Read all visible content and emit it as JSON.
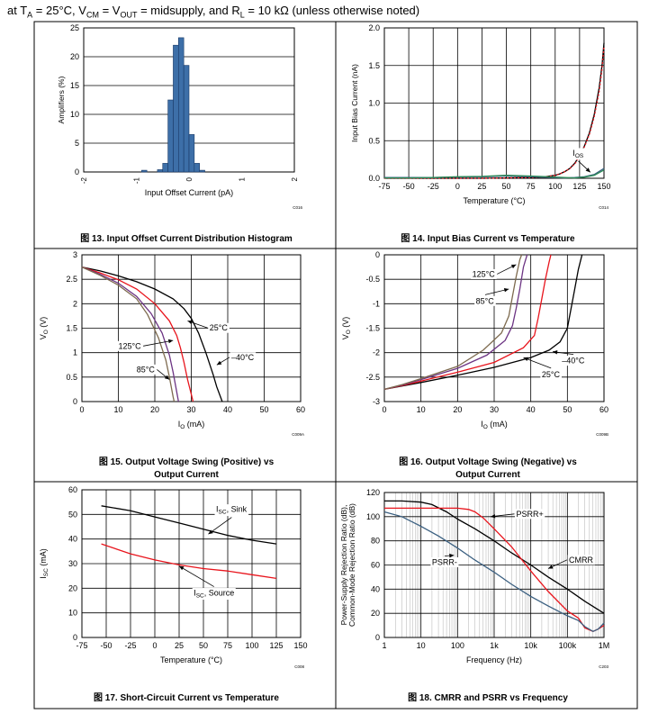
{
  "header": {
    "part1": "at T",
    "sub1": "A",
    "part2": " = 25°C, V",
    "sub2": "CM",
    "part3": " = V",
    "sub3": "OUT",
    "part4": " = midsupply, and R",
    "sub4": "L",
    "part5": " = 10 kΩ (unless otherwise noted)"
  },
  "colors": {
    "black": "#000000",
    "red": "#e8141c",
    "purple": "#6c3483",
    "brown": "#7d6a4e",
    "blue": "#3a5f80",
    "bar": "#3d6fa8",
    "green": "#2e8b57"
  },
  "chart_data": [
    {
      "id": "fig13",
      "type": "bar",
      "caption": "图 13. Input Offset Current Distribution Histogram",
      "code": "C016",
      "xlabel": "Input Offset Current (pA)",
      "ylabel": "Amplifiers (%)",
      "xlim": [
        -2,
        2
      ],
      "ylim": [
        0,
        25
      ],
      "xticks": [
        -2,
        -1,
        0,
        1,
        2
      ],
      "yticks": [
        0,
        5,
        10,
        15,
        20,
        25
      ],
      "bin_width": 0.1,
      "bins": [
        -0.9,
        -0.6,
        -0.5,
        -0.4,
        -0.3,
        -0.2,
        -0.1,
        0.0,
        0.1,
        0.2
      ],
      "values": [
        0.3,
        0.4,
        1.5,
        12.5,
        22.0,
        23.3,
        18.5,
        6.5,
        1.5,
        0.3
      ]
    },
    {
      "id": "fig14",
      "type": "line",
      "caption": "图 14. Input Bias Current vs Temperature",
      "code": "C014",
      "xlabel": "Temperature (°C)",
      "ylabel": "Input Bias Current (nA)",
      "xlim": [
        -75,
        150
      ],
      "ylim": [
        0,
        2
      ],
      "xticks": [
        -75,
        -50,
        -25,
        0,
        25,
        50,
        75,
        100,
        125,
        150
      ],
      "yticks": [
        0,
        0.5,
        1.0,
        1.5,
        2.0
      ],
      "ytick_labels": [
        "0.0",
        "0.5",
        "1.0",
        "1.5",
        "2.0"
      ],
      "series": [
        {
          "color": "#000000",
          "x": [
            -75,
            -50,
            -25,
            0,
            25,
            50,
            75,
            90,
            100,
            105,
            110,
            115,
            120,
            125,
            130,
            135,
            140,
            145,
            148,
            150
          ],
          "y": [
            0,
            0,
            0,
            0,
            0,
            0.005,
            0.01,
            0.02,
            0.04,
            0.06,
            0.09,
            0.13,
            0.2,
            0.3,
            0.43,
            0.6,
            0.85,
            1.2,
            1.5,
            1.8
          ]
        },
        {
          "color": "#e8141c",
          "x": [
            -75,
            -50,
            -25,
            0,
            25,
            50,
            75,
            90,
            100,
            105,
            110,
            115,
            120,
            125,
            130,
            135,
            140,
            145,
            148,
            150
          ],
          "y": [
            0,
            0,
            0,
            0,
            0,
            0.005,
            0.01,
            0.02,
            0.04,
            0.06,
            0.09,
            0.13,
            0.19,
            0.29,
            0.42,
            0.58,
            0.82,
            1.15,
            1.45,
            1.75
          ]
        },
        {
          "color": "#3a5f80",
          "x": [
            -75,
            -50,
            -25,
            0,
            25,
            50,
            75,
            100,
            110,
            120,
            130,
            140,
            150
          ],
          "y": [
            0.01,
            0.01,
            0.01,
            0.015,
            0.02,
            0.03,
            0.02,
            0.01,
            0.005,
            0.01,
            0.02,
            0.05,
            0.13
          ]
        },
        {
          "color": "#2e8b57",
          "x": [
            -75,
            -50,
            -25,
            0,
            25,
            50,
            75,
            100,
            110,
            120,
            130,
            140,
            150
          ],
          "y": [
            0.005,
            0.005,
            0.01,
            0.02,
            0.025,
            0.04,
            0.03,
            0.015,
            0.01,
            0.005,
            0.015,
            0.04,
            0.11
          ]
        }
      ],
      "annotations": [
        {
          "main": "I",
          "sub": "OS",
          "x": 118,
          "y": 0.3,
          "arrow_to": [
            136,
            0.08
          ]
        }
      ]
    },
    {
      "id": "fig15",
      "type": "line",
      "caption": "图 15. Output Voltage Swing (Positive) vs",
      "caption2": "Output Current",
      "code": "C009A",
      "xlabel": "I",
      "xlabel_sub": "O",
      "xlabel_rest": " (mA)",
      "ylabel": "V",
      "ylabel_sub": "O",
      "ylabel_rest": " (V)",
      "xlim": [
        0,
        60
      ],
      "ylim": [
        0,
        3
      ],
      "xticks": [
        0,
        10,
        20,
        30,
        40,
        50,
        60
      ],
      "yticks": [
        0,
        0.5,
        1,
        1.5,
        2,
        2.5,
        3
      ],
      "ytick_labels": [
        "0",
        "0.5",
        "1",
        "1.5",
        "2",
        "2.5",
        "3"
      ],
      "series": [
        {
          "name": "-40°C",
          "color": "#000000",
          "x": [
            0,
            5,
            10,
            15,
            20,
            25,
            28,
            30,
            32,
            34,
            36,
            37,
            38,
            38.5
          ],
          "y": [
            2.75,
            2.67,
            2.57,
            2.45,
            2.3,
            2.1,
            1.9,
            1.7,
            1.4,
            1.0,
            0.55,
            0.3,
            0.1,
            0
          ]
        },
        {
          "name": "25°C",
          "color": "#e8141c",
          "x": [
            0,
            5,
            10,
            15,
            20,
            24,
            26,
            27,
            28,
            29,
            30,
            30.5
          ],
          "y": [
            2.75,
            2.63,
            2.49,
            2.3,
            2.0,
            1.65,
            1.35,
            1.1,
            0.8,
            0.45,
            0.15,
            0
          ]
        },
        {
          "name": "125°C",
          "color": "#6c3483",
          "x": [
            0,
            5,
            10,
            15,
            19,
            22,
            24,
            25,
            26,
            26.5
          ],
          "y": [
            2.75,
            2.6,
            2.42,
            2.15,
            1.8,
            1.4,
            0.95,
            0.6,
            0.2,
            0
          ]
        },
        {
          "name": "85°C",
          "color": "#7d6a4e",
          "x": [
            0,
            5,
            10,
            15,
            18,
            21,
            23,
            24,
            25,
            25.3
          ],
          "y": [
            2.75,
            2.58,
            2.38,
            2.1,
            1.78,
            1.3,
            0.85,
            0.5,
            0.1,
            0
          ]
        }
      ],
      "annotations": [
        {
          "text": "25°C",
          "x": 35,
          "y": 1.45,
          "arrow_to": [
            29,
            1.65
          ]
        },
        {
          "text": "–40°C",
          "x": 41,
          "y": 0.85,
          "arrow_to": [
            37,
            0.75
          ]
        },
        {
          "text": "125°C",
          "x": 10,
          "y": 1.08,
          "arrow_to": [
            25,
            1.25
          ]
        },
        {
          "text": "85°C",
          "x": 15,
          "y": 0.6,
          "arrow_to": [
            24,
            0.45
          ]
        }
      ]
    },
    {
      "id": "fig16",
      "type": "line",
      "caption": "图 16. Output Voltage Swing (Negative) vs",
      "caption2": "Output Current",
      "code": "C009B",
      "xlabel": "I",
      "xlabel_sub": "O",
      "xlabel_rest": " (mA)",
      "ylabel": "V",
      "ylabel_sub": "O",
      "ylabel_rest": " (V)",
      "xlim": [
        0,
        60
      ],
      "ylim": [
        -3,
        0
      ],
      "xticks": [
        0,
        10,
        20,
        30,
        40,
        50,
        60
      ],
      "yticks": [
        -3,
        -2.5,
        -2,
        -1.5,
        -1,
        -0.5,
        0
      ],
      "ytick_labels": [
        "-3",
        "-2.5",
        "-2",
        "-1.5",
        "-1",
        "-0.5",
        "0"
      ],
      "series": [
        {
          "name": "-40°C",
          "color": "#000000",
          "x": [
            0,
            5,
            10,
            20,
            30,
            40,
            45,
            48,
            50,
            51,
            52,
            53,
            54
          ],
          "y": [
            -2.75,
            -2.68,
            -2.61,
            -2.46,
            -2.3,
            -2.1,
            -1.95,
            -1.78,
            -1.5,
            -1.1,
            -0.7,
            -0.3,
            0
          ]
        },
        {
          "name": "25°C",
          "color": "#e8141c",
          "x": [
            0,
            5,
            10,
            20,
            30,
            38,
            41,
            42,
            43,
            44,
            45,
            45.5
          ],
          "y": [
            -2.75,
            -2.67,
            -2.58,
            -2.4,
            -2.2,
            -1.9,
            -1.65,
            -1.3,
            -0.9,
            -0.5,
            -0.15,
            0
          ]
        },
        {
          "name": "125°C",
          "color": "#6c3483",
          "x": [
            0,
            5,
            10,
            20,
            28,
            33,
            35,
            36,
            37,
            38,
            39
          ],
          "y": [
            -2.75,
            -2.66,
            -2.55,
            -2.32,
            -2.05,
            -1.75,
            -1.45,
            -1.1,
            -0.7,
            -0.25,
            0
          ]
        },
        {
          "name": "85°C",
          "color": "#7d6a4e",
          "x": [
            0,
            5,
            10,
            20,
            27,
            32,
            34,
            35,
            36,
            37,
            37.5
          ],
          "y": [
            -2.75,
            -2.65,
            -2.53,
            -2.28,
            -1.95,
            -1.6,
            -1.25,
            -0.85,
            -0.45,
            -0.1,
            0
          ]
        }
      ],
      "annotations": [
        {
          "text": "125°C",
          "x": 24,
          "y": -0.45,
          "arrow_to": [
            36,
            -0.2
          ]
        },
        {
          "text": "85°C",
          "x": 25,
          "y": -1.0,
          "arrow_to": [
            34,
            -0.7
          ]
        },
        {
          "text": "–40°C",
          "x": 48.5,
          "y": -2.22,
          "arrow_to": [
            46,
            -1.98
          ]
        },
        {
          "text": "25°C",
          "x": 43,
          "y": -2.5,
          "arrow_to": [
            38,
            -2.1
          ]
        }
      ]
    },
    {
      "id": "fig17",
      "type": "line",
      "caption": "图 17. Short-Circuit Current vs Temperature",
      "code": "C008",
      "xlabel": "Temperature (°C)",
      "ylabel": "I",
      "ylabel_sub": "SC",
      "ylabel_rest": " (mA)",
      "xlim": [
        -75,
        150
      ],
      "ylim": [
        0,
        60
      ],
      "xticks": [
        -75,
        -50,
        -25,
        0,
        25,
        50,
        75,
        100,
        125,
        150
      ],
      "yticks": [
        0,
        10,
        20,
        30,
        40,
        50,
        60
      ],
      "series": [
        {
          "name": "ISC, Sink",
          "color": "#000000",
          "x": [
            -55,
            -25,
            0,
            25,
            50,
            75,
            100,
            125
          ],
          "y": [
            53.5,
            51.5,
            49,
            46.5,
            44,
            41.5,
            39.5,
            38
          ]
        },
        {
          "name": "ISC, Source",
          "color": "#e8141c",
          "x": [
            -55,
            -40,
            -25,
            0,
            25,
            50,
            75,
            100,
            125
          ],
          "y": [
            38,
            36,
            34,
            31.5,
            29.5,
            28,
            27,
            25.5,
            24
          ]
        }
      ],
      "annotations": [
        {
          "main": "I",
          "sub": "SC",
          "rest": ", Sink",
          "x": 63,
          "y": 51,
          "arrow_to": [
            55,
            42
          ]
        },
        {
          "main": "I",
          "sub": "SC",
          "rest": ", Source",
          "x": 40,
          "y": 17,
          "arrow_to": [
            25,
            29
          ]
        }
      ]
    },
    {
      "id": "fig18",
      "type": "line",
      "xscale": "log",
      "caption": "图 18. CMRR and PSRR vs Frequency",
      "code": "C203",
      "xlabel": "Frequency (Hz)",
      "ylabel": "Power-Supply Rejection Ratio (dB),",
      "ylabel2": "Common-Mode Rejection Ratio (dB)",
      "xlim": [
        1,
        1000000
      ],
      "ylim": [
        0,
        120
      ],
      "xticks": [
        1,
        10,
        100,
        1000,
        10000,
        100000,
        1000000
      ],
      "xtick_labels": [
        "1",
        "10",
        "100",
        "1k",
        "10k",
        "100k",
        "1M"
      ],
      "yticks": [
        0,
        20,
        40,
        60,
        80,
        100,
        120
      ],
      "series": [
        {
          "name": "CMRR",
          "color": "#000000",
          "x": [
            1,
            3,
            10,
            20,
            50,
            100,
            300,
            1000,
            3000,
            10000,
            30000,
            100000,
            300000,
            1000000
          ],
          "y": [
            113,
            113,
            112,
            110,
            104,
            98,
            90,
            80,
            70,
            60,
            50,
            40,
            30,
            20
          ]
        },
        {
          "name": "PSRR+",
          "color": "#e8141c",
          "x": [
            1,
            10,
            100,
            200,
            300,
            500,
            1000,
            3000,
            10000,
            30000,
            100000,
            200000,
            300000,
            500000,
            700000,
            1000000
          ],
          "y": [
            107,
            107,
            107,
            106,
            104,
            99,
            90,
            75,
            55,
            38,
            22,
            16,
            8,
            5,
            7,
            10
          ]
        },
        {
          "name": "PSRR-",
          "color": "#3a5f80",
          "x": [
            1,
            3,
            10,
            30,
            100,
            300,
            1000,
            3000,
            10000,
            30000,
            100000,
            200000,
            300000,
            500000,
            700000,
            1000000
          ],
          "y": [
            104,
            100,
            92,
            84,
            74,
            64,
            54,
            44,
            34,
            26,
            18,
            14,
            9,
            5,
            7,
            12
          ]
        }
      ],
      "annotations": [
        {
          "text": "PSRR+",
          "x": 4000,
          "y": 100,
          "arrow_to": [
            800,
            100
          ]
        },
        {
          "text": "PSRR-",
          "x": 20,
          "y": 60,
          "arrow_to": [
            80,
            68
          ]
        },
        {
          "text": "CMRR",
          "x": 110000,
          "y": 62,
          "arrow_to": [
            30000,
            57
          ]
        }
      ]
    }
  ]
}
